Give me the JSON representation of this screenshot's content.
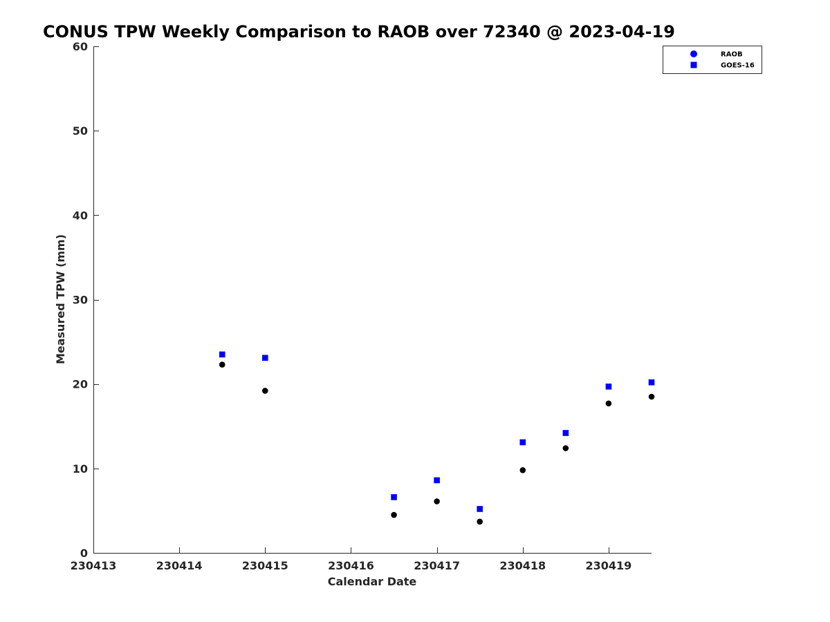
{
  "chart_data": {
    "type": "scatter",
    "title": "CONUS TPW Weekly Comparison to RAOB over 72340 @ 2023-04-19",
    "xlabel": "Calendar Date",
    "ylabel": "Measured TPW (mm)",
    "xlim": [
      230413,
      230419.5
    ],
    "ylim": [
      0,
      60
    ],
    "x_ticks": [
      230413,
      230414,
      230415,
      230416,
      230417,
      230418,
      230419
    ],
    "x_tick_labels": [
      "230413",
      "230414",
      "230415",
      "230416",
      "230417",
      "230418",
      "230419"
    ],
    "y_ticks": [
      0,
      10,
      20,
      30,
      40,
      50,
      60
    ],
    "y_tick_labels": [
      "0",
      "10",
      "20",
      "30",
      "40",
      "50",
      "60"
    ],
    "grid": false,
    "legend_position": "top-right",
    "series": [
      {
        "name": "RAOB",
        "marker": "circle",
        "color": "#000000",
        "legend_color": "#0000ff",
        "x": [
          230414.5,
          230415,
          230416.5,
          230417,
          230417.5,
          230418,
          230418.5,
          230419,
          230419.5
        ],
        "y": [
          22.3,
          19.2,
          4.5,
          6.1,
          3.7,
          9.8,
          12.4,
          17.7,
          18.5
        ]
      },
      {
        "name": "GOES-16",
        "marker": "square",
        "color": "#0000ff",
        "legend_color": "#0000ff",
        "x": [
          230414.5,
          230415,
          230416.5,
          230417,
          230417.5,
          230418,
          230418.5,
          230419,
          230419.5
        ],
        "y": [
          23.5,
          23.1,
          6.6,
          8.6,
          5.2,
          13.1,
          14.2,
          19.7,
          20.2
        ]
      }
    ]
  }
}
